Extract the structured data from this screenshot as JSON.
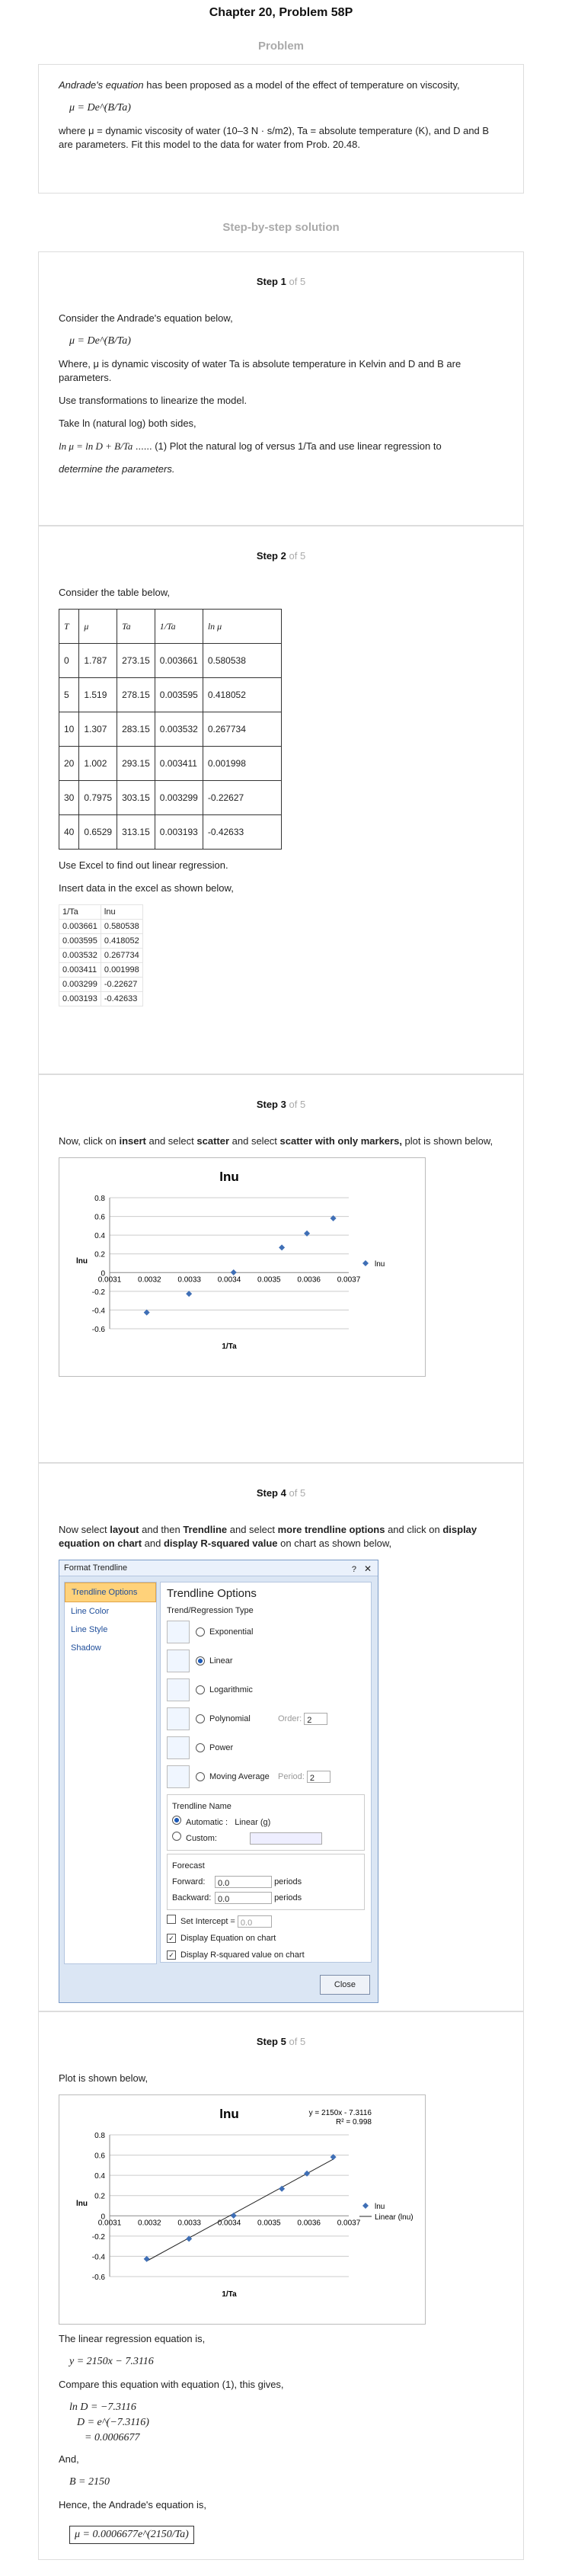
{
  "header": {
    "title": "Chapter 20, Problem 58P",
    "problem_label": "Problem",
    "solution_label": "Step-by-step solution"
  },
  "problem": {
    "intro_em": "Andrade's equation",
    "intro_rest": " has been proposed as a model of the effect of temperature on viscosity,",
    "equation": "μ = De^(B/Ta)",
    "desc": "where μ = dynamic viscosity of water (10–3 N · s/m2), Ta = absolute temperature (K), and D and B are parameters. Fit this model to the data for water from Prob. 20.48."
  },
  "steps": [
    {
      "n": "1",
      "of": "of 5"
    },
    {
      "n": "2",
      "of": "of 5"
    },
    {
      "n": "3",
      "of": "of 5"
    },
    {
      "n": "4",
      "of": "of 5"
    },
    {
      "n": "5",
      "of": "of 5"
    }
  ],
  "step_label": "Step",
  "step1": {
    "p1": "Consider the Andrade's equation below,",
    "eq1": "μ = De^(B/Ta)",
    "p2": "Where, μ is dynamic viscosity of water Ta is absolute temperature in Kelvin and D and B are parameters.",
    "p3": "Use transformations to linearize the model.",
    "p4": "Take ln (natural log) both sides,",
    "eq2": "ln μ = ln D + B/Ta",
    "eq2_tail": "...... (1) Plot the natural log of versus 1/Ta and use linear regression to",
    "p5": "determine the parameters."
  },
  "step2": {
    "p1": "Consider the table below,",
    "headers": [
      "T",
      "μ",
      "Ta",
      "1/Ta",
      "ln μ"
    ],
    "rows": [
      [
        "0",
        "1.787",
        "273.15",
        "0.003661",
        "0.580538"
      ],
      [
        "5",
        "1.519",
        "278.15",
        "0.003595",
        "0.418052"
      ],
      [
        "10",
        "1.307",
        "283.15",
        "0.003532",
        "0.267734"
      ],
      [
        "20",
        "1.002",
        "293.15",
        "0.003411",
        "0.001998"
      ],
      [
        "30",
        "0.7975",
        "303.15",
        "0.003299",
        "-0.22627"
      ],
      [
        "40",
        "0.6529",
        "313.15",
        "0.003193",
        "-0.42633"
      ]
    ],
    "p2": "Use Excel to find out linear regression.",
    "p3": "Insert data in the excel as shown below,",
    "xl_headers": [
      "1/Ta",
      "lnu"
    ],
    "xl_rows": [
      [
        "0.003661",
        "0.580538"
      ],
      [
        "0.003595",
        "0.418052"
      ],
      [
        "0.003532",
        "0.267734"
      ],
      [
        "0.003411",
        "0.001998"
      ],
      [
        "0.003299",
        "-0.22627"
      ],
      [
        "0.003193",
        "-0.42633"
      ]
    ]
  },
  "step3": {
    "p1_a": "Now, click on ",
    "p1_b": "insert",
    "p1_c": " and select ",
    "p1_d": "scatter",
    "p1_e": " and select ",
    "p1_f": "scatter with only markers,",
    "p1_g": " plot is shown below,"
  },
  "step4": {
    "p1_a": "Now select ",
    "p1_b": "layout",
    "p1_c": " and then ",
    "p1_d": "Trendline",
    "p1_e": " and select ",
    "p1_f": "more trendline options",
    "p1_g": " and click on ",
    "p1_h": "display equation on chart",
    "p1_i": " and ",
    "p1_j": "display R-squared value",
    "p1_k": " on chart as shown below,",
    "dialog": {
      "title": "Format Trendline",
      "left_items": [
        "Trendline Options",
        "Line Color",
        "Line Style",
        "Shadow"
      ],
      "heading": "Trendline Options",
      "type_label": "Trend/Regression Type",
      "types": [
        "Exponential",
        "Linear",
        "Logarithmic",
        "Polynomial",
        "Power",
        "Moving Average"
      ],
      "order_label": "Order:",
      "order_value": "2",
      "period_label": "Period:",
      "period_value": "2",
      "name_label": "Trendline Name",
      "automatic": "Automatic :",
      "automatic_value": "Linear (g)",
      "custom": "Custom:",
      "forecast": "Forecast",
      "forward": "Forward:",
      "backward": "Backward:",
      "forward_value": "0.0",
      "backward_value": "0.0",
      "periods": "periods",
      "set_intercept": "Set Intercept =",
      "intercept_value": "0.0",
      "disp_eq": "Display Equation on chart",
      "disp_r2": "Display R-squared value on chart",
      "close": "Close"
    }
  },
  "step5": {
    "p1": "Plot is shown below,",
    "p2": "The linear regression equation is,",
    "eq1": "y = 2150x − 7.3116",
    "p3": "Compare this equation with equation (1), this gives,",
    "eq2": "ln D = −7.3116",
    "eq3": "D = e^(−7.3116)",
    "eq4": "= 0.0006677",
    "p4": "And,",
    "eq5": "B = 2150",
    "p5": "Hence, the Andrade's equation is,",
    "eq6": "μ = 0.0006677e^(2150/Ta)"
  },
  "chart_data": [
    {
      "type": "scatter",
      "title": "lnu",
      "xlabel": "1/Ta",
      "ylabel": "lnu",
      "legend": [
        "lnu"
      ],
      "legend_position": "right",
      "x": [
        0.003661,
        0.003595,
        0.003532,
        0.003411,
        0.003299,
        0.003193
      ],
      "y": [
        0.580538,
        0.418052,
        0.267734,
        0.001998,
        -0.22627,
        -0.42633
      ],
      "xlim": [
        0.0031,
        0.0037
      ],
      "ylim": [
        -0.6,
        0.8
      ],
      "xticks": [
        "0.0031",
        "0.0032",
        "0.0033",
        "0.0034",
        "0.0035",
        "0.0036",
        "0.0037"
      ],
      "yticks": [
        "0.8",
        "0.6",
        "0.4",
        "0.2",
        "0",
        "-0.2",
        "-0.4",
        "-0.6"
      ],
      "grid": true
    },
    {
      "type": "scatter",
      "title": "lnu",
      "xlabel": "1/Ta",
      "ylabel": "lnu",
      "legend": [
        "lnu",
        "Linear (lnu)"
      ],
      "legend_position": "right",
      "x": [
        0.003661,
        0.003595,
        0.003532,
        0.003411,
        0.003299,
        0.003193
      ],
      "y": [
        0.580538,
        0.418052,
        0.267734,
        0.001998,
        -0.22627,
        -0.42633
      ],
      "xlim": [
        0.0031,
        0.0037
      ],
      "ylim": [
        -0.6,
        0.8
      ],
      "xticks": [
        "0.0031",
        "0.0032",
        "0.0033",
        "0.0034",
        "0.0035",
        "0.0036",
        "0.0037"
      ],
      "yticks": [
        "0.8",
        "0.6",
        "0.4",
        "0.2",
        "0",
        "-0.2",
        "-0.4",
        "-0.6"
      ],
      "trendline": {
        "slope": 2150,
        "intercept": -7.3116
      },
      "annotation": [
        "y = 2150x - 7.3116",
        "R² = 0.998"
      ],
      "grid": true
    }
  ]
}
